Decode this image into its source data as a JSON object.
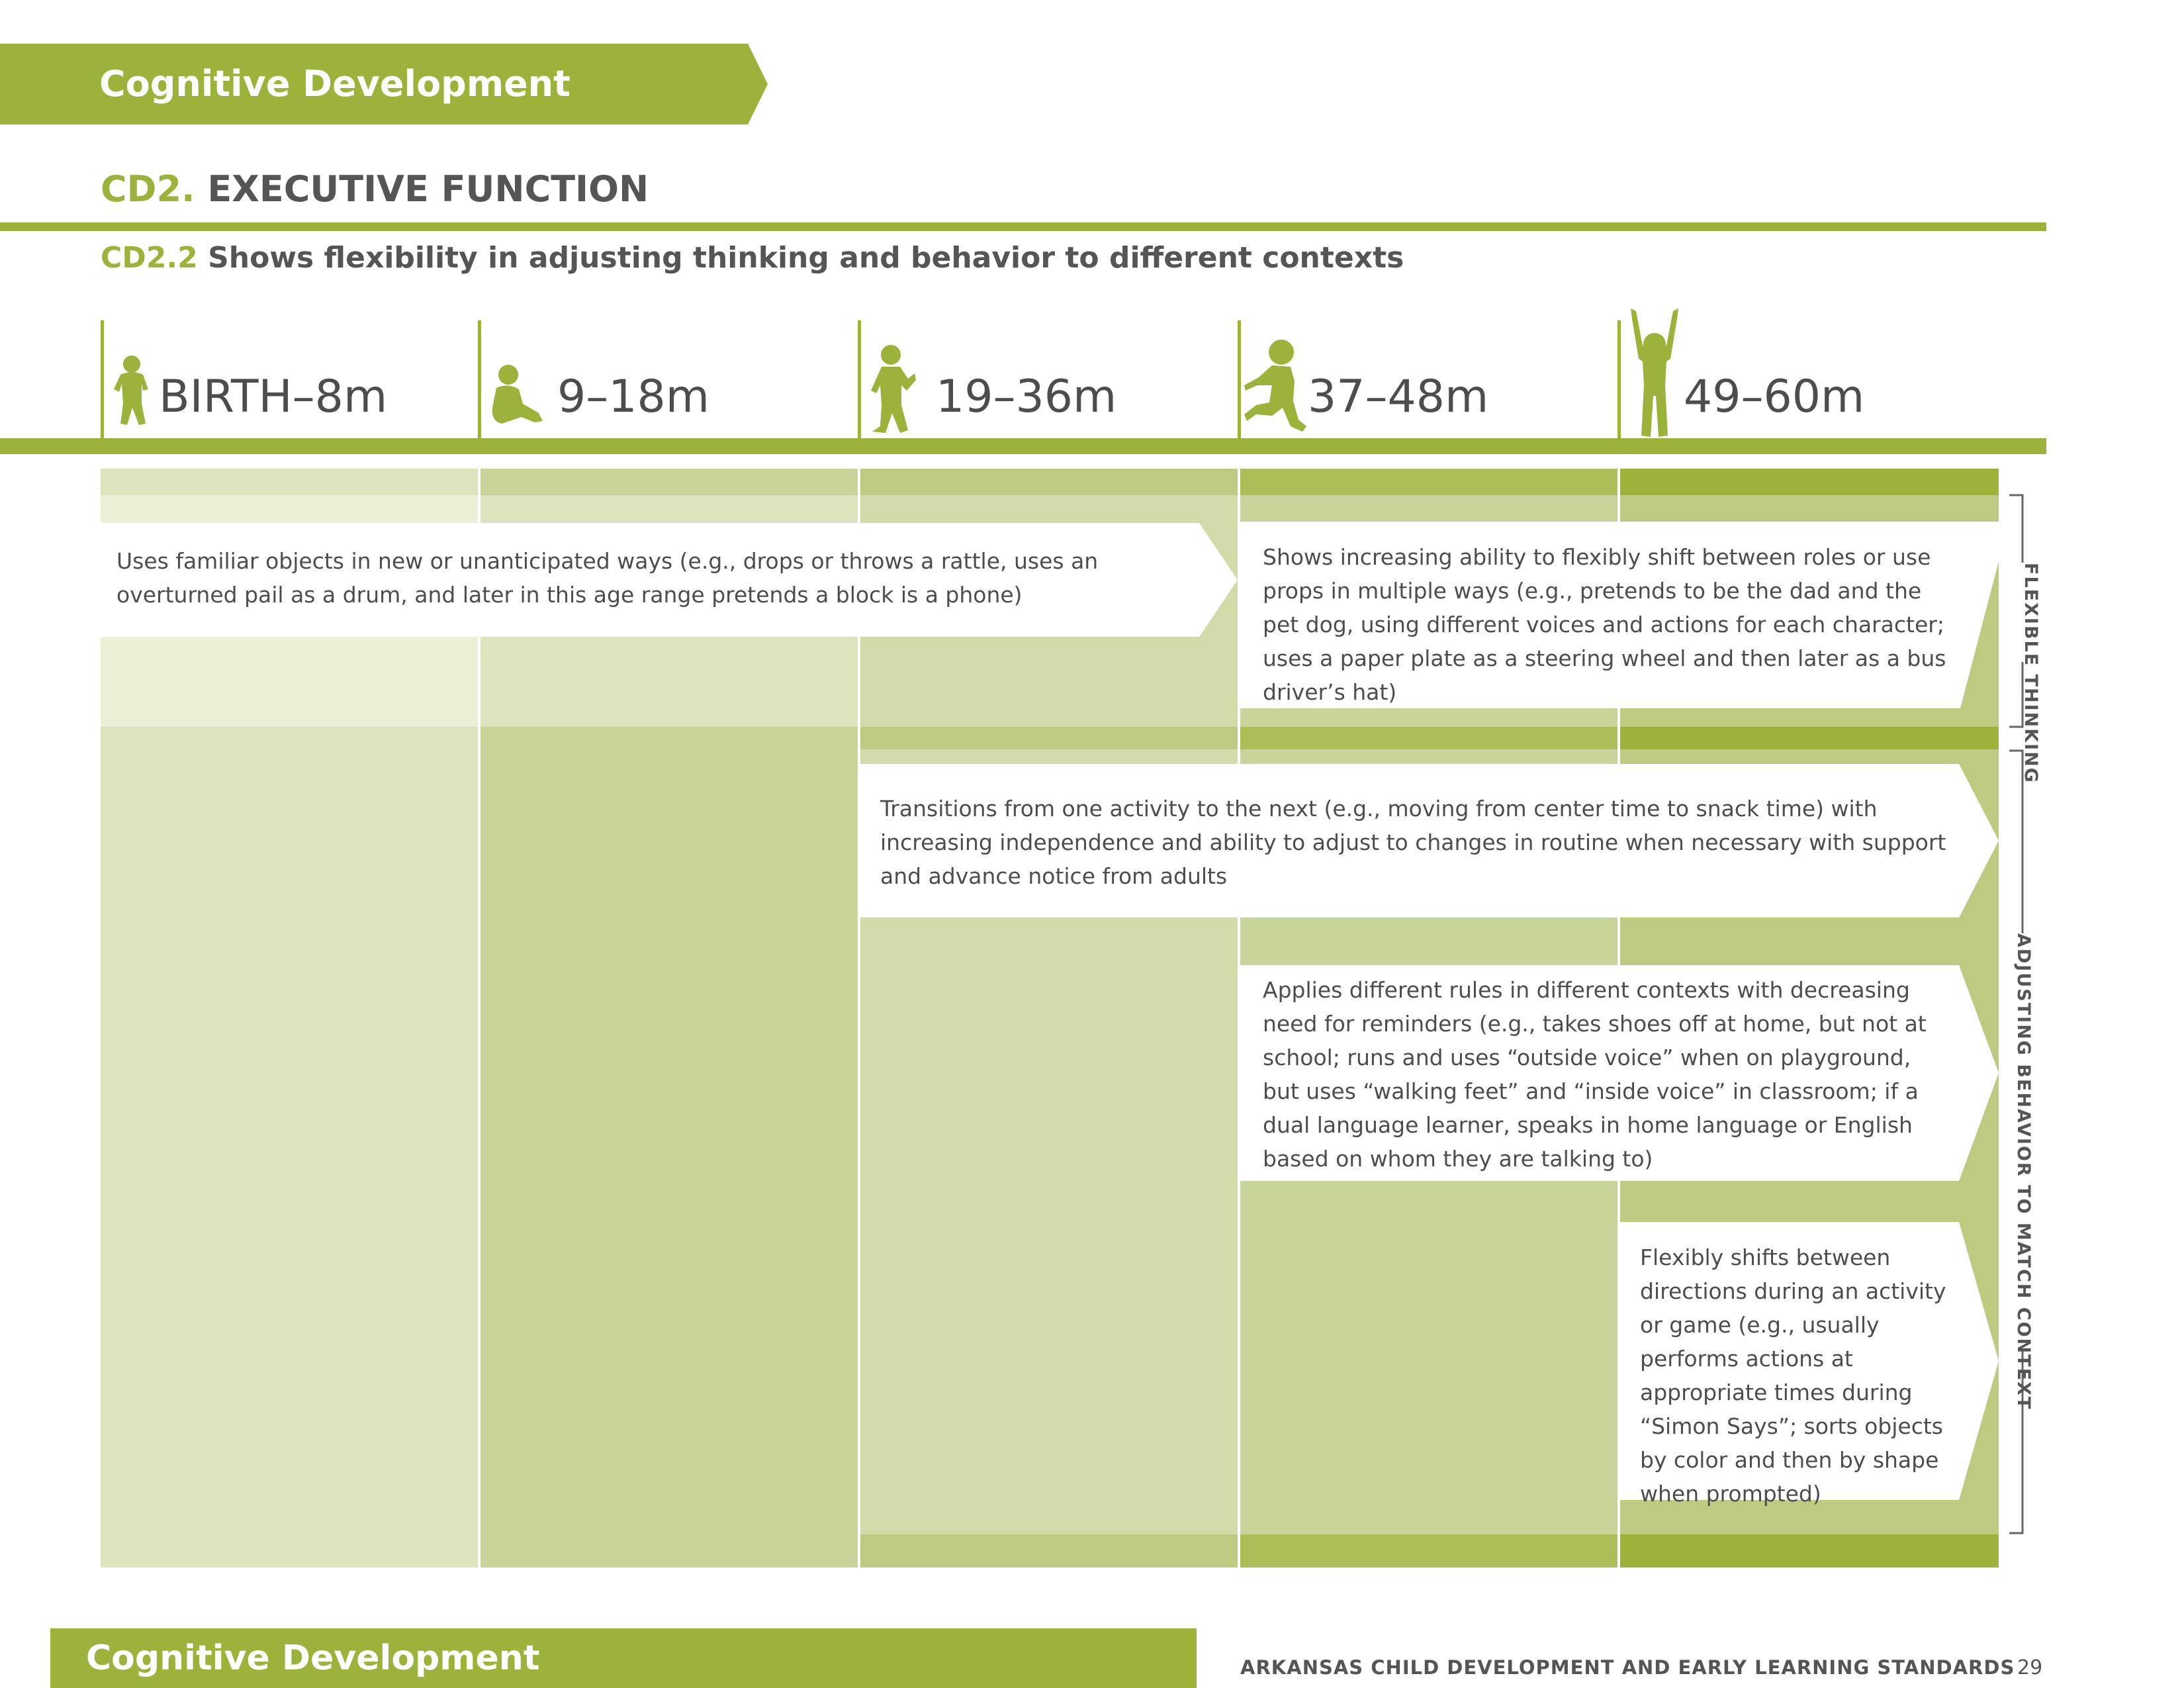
{
  "header": {
    "banner_label": "Cognitive Development"
  },
  "section": {
    "code": "CD2.",
    "title": "EXECUTIVE FUNCTION"
  },
  "standard": {
    "code": "CD2.2",
    "text": "Shows flexibility in adjusting thinking and behavior to different contexts"
  },
  "age_columns": [
    {
      "label": "BIRTH–8m",
      "icon": "infant-silhouette-icon"
    },
    {
      "label": "9–18m",
      "icon": "sitting-baby-silhouette-icon"
    },
    {
      "label": "19–36m",
      "icon": "toddler-walking-silhouette-icon"
    },
    {
      "label": "37–48m",
      "icon": "child-running-silhouette-icon"
    },
    {
      "label": "49–60m",
      "icon": "child-arms-raised-silhouette-icon"
    }
  ],
  "indicators": [
    {
      "text": "Uses familiar objects in new or unanticipated ways (e.g., drops or throws a rattle, uses an overturned pail as a drum, and later in this age range pretends a block is a phone)"
    },
    {
      "text": "Shows increasing ability to flexibly shift between roles or use props in multiple ways (e.g., pretends to be the dad and the pet dog, using different voices and actions for each character; uses a paper plate as a steering wheel and then later as a bus driver’s hat)"
    },
    {
      "text": "Transitions from one activity to the next (e.g., moving from center time to snack time) with increasing independence and ability to adjust to changes in routine when necessary with support and advance notice from adults"
    },
    {
      "text": "Applies different rules in different contexts with decreasing need for reminders (e.g., takes shoes off at home, but not at school; runs and uses “outside voice” when on playground, but uses “walking feet” and “inside voice” in classroom; if a dual language learner, speaks in home language or English based on whom they are talking to)"
    },
    {
      "text": "Flexibly shifts between directions during an activity or game (e.g., usually performs actions at appropriate times during “Simon Says”; sorts objects by color and then by shape when prompted)"
    }
  ],
  "side_labels": {
    "flexible": "FLEXIBLE THINKING",
    "adjusting": "ADJUSTING BEHAVIOR TO MATCH CONTEXT"
  },
  "footer": {
    "label": "Cognitive Development",
    "document": "ARKANSAS CHILD DEVELOPMENT AND EARLY LEARNING STANDARDS",
    "page": "29"
  },
  "colors": {
    "accent": "#9bb23b",
    "text": "#4d4d4d"
  }
}
